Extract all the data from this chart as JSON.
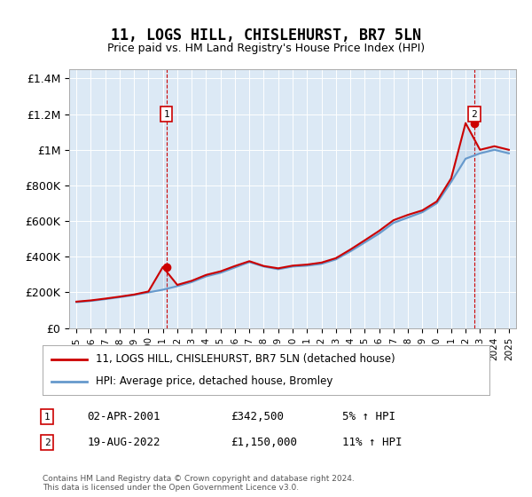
{
  "title": "11, LOGS HILL, CHISLEHURST, BR7 5LN",
  "subtitle": "Price paid vs. HM Land Registry's House Price Index (HPI)",
  "background_color": "#dce9f5",
  "plot_bg_color": "#dce9f5",
  "years": [
    1995,
    1996,
    1997,
    1998,
    1999,
    2000,
    2001,
    2002,
    2003,
    2004,
    2005,
    2006,
    2007,
    2008,
    2009,
    2010,
    2011,
    2012,
    2013,
    2014,
    2015,
    2016,
    2017,
    2018,
    2019,
    2020,
    2021,
    2022,
    2023,
    2024,
    2025
  ],
  "hpi_values": [
    145000,
    152000,
    162000,
    173000,
    185000,
    200000,
    215000,
    235000,
    258000,
    290000,
    310000,
    340000,
    370000,
    345000,
    330000,
    345000,
    350000,
    360000,
    385000,
    430000,
    480000,
    530000,
    590000,
    620000,
    650000,
    700000,
    820000,
    950000,
    980000,
    1000000,
    980000
  ],
  "price_values": [
    148000,
    155000,
    165000,
    176000,
    188000,
    205000,
    342500,
    242000,
    265000,
    298000,
    318000,
    348000,
    375000,
    348000,
    335000,
    350000,
    356000,
    367000,
    392000,
    440000,
    492000,
    545000,
    605000,
    635000,
    660000,
    710000,
    840000,
    1150000,
    1000000,
    1020000,
    1000000
  ],
  "sale1_year": 2001.25,
  "sale1_value": 342500,
  "sale1_label": "1",
  "sale2_year": 2022.6,
  "sale2_value": 1150000,
  "sale2_label": "2",
  "ylim": [
    0,
    1450000
  ],
  "yticks": [
    0,
    200000,
    400000,
    600000,
    800000,
    1000000,
    1200000,
    1400000
  ],
  "ytick_labels": [
    "£0",
    "£200K",
    "£400K",
    "£600K",
    "£800K",
    "£1M",
    "£1.2M",
    "£1.4M"
  ],
  "legend_line1": "11, LOGS HILL, CHISLEHURST, BR7 5LN (detached house)",
  "legend_line2": "HPI: Average price, detached house, Bromley",
  "annotation1_date": "02-APR-2001",
  "annotation1_price": "£342,500",
  "annotation1_hpi": "5% ↑ HPI",
  "annotation2_date": "19-AUG-2022",
  "annotation2_price": "£1,150,000",
  "annotation2_hpi": "11% ↑ HPI",
  "footer": "Contains HM Land Registry data © Crown copyright and database right 2024.\nThis data is licensed under the Open Government Licence v3.0.",
  "line_price_color": "#cc0000",
  "line_hpi_color": "#6699cc",
  "dashed_color": "#cc0000",
  "marker_color": "#cc0000"
}
